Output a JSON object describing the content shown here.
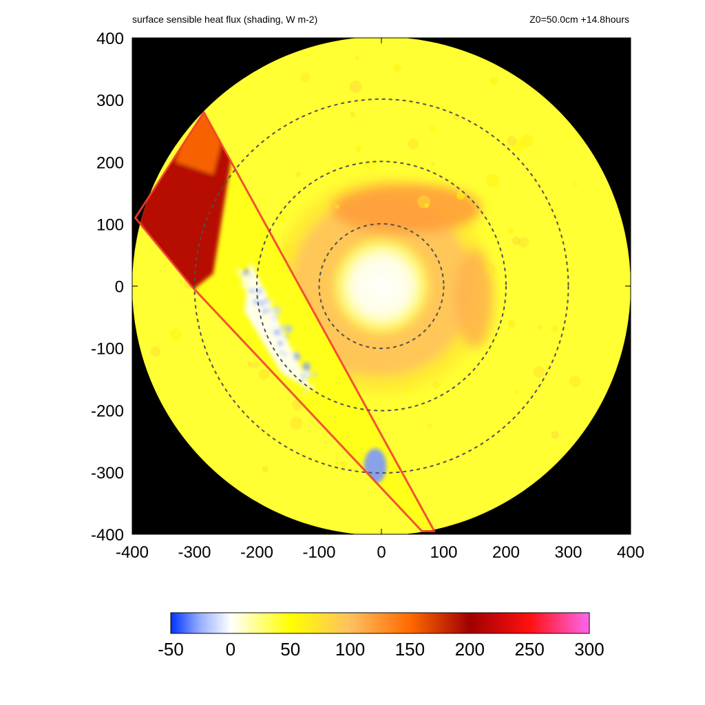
{
  "header": {
    "title": "surface sensible heat flux (shading, W m-2)",
    "run_label": "Z0=50.0cm  +14.8hours"
  },
  "chart_data": {
    "type": "heatmap",
    "title": "surface sensible heat flux (shading, W m-2)",
    "annotation": "Z0=50.0cm  +14.8hours",
    "xlabel": "",
    "ylabel": "",
    "xlim": [
      -400,
      400
    ],
    "ylim": [
      -400,
      400
    ],
    "x_ticks": [
      -400,
      -300,
      -200,
      -100,
      0,
      100,
      200,
      300,
      400
    ],
    "y_ticks": [
      -400,
      -300,
      -200,
      -100,
      0,
      100,
      200,
      300,
      400
    ],
    "domain_radius": 400,
    "background_outside_domain": "#000000",
    "dashed_circles": [
      {
        "radius": 100,
        "color": "#505050"
      },
      {
        "radius": 200,
        "color": "#505050"
      },
      {
        "radius": 300,
        "color": "#505050"
      }
    ],
    "land_strip_outline": {
      "color": "#f04030",
      "polygon": [
        [
          -285,
          280
        ],
        [
          85,
          -395
        ],
        [
          65,
          -395
        ],
        [
          -305,
          0
        ],
        [
          -395,
          110
        ]
      ]
    },
    "colorbar": {
      "min": -50,
      "max": 300,
      "ticks": [
        -50,
        0,
        50,
        100,
        150,
        200,
        250,
        300
      ],
      "stops": [
        {
          "value": -50,
          "color": "#0033ff"
        },
        {
          "value": -25,
          "color": "#9ab0ff"
        },
        {
          "value": 0,
          "color": "#ffffff"
        },
        {
          "value": 50,
          "color": "#ffff00"
        },
        {
          "value": 100,
          "color": "#ffc060"
        },
        {
          "value": 150,
          "color": "#ff6a00"
        },
        {
          "value": 200,
          "color": "#a00000"
        },
        {
          "value": 250,
          "color": "#ff1010"
        },
        {
          "value": 300,
          "color": "#ff66ee"
        }
      ]
    },
    "field_regions": [
      {
        "kind": "ambient",
        "value": 40
      },
      {
        "kind": "eye",
        "center": [
          0,
          0
        ],
        "radius": 75,
        "value": 10
      },
      {
        "kind": "eyewall_ring",
        "center": [
          0,
          0
        ],
        "radius": 110,
        "width": 70,
        "value": 100,
        "arc_deg": [
          -240,
          70
        ]
      },
      {
        "kind": "north_band",
        "center": [
          40,
          125
        ],
        "rx": 120,
        "ry": 40,
        "value": 120
      },
      {
        "kind": "land_strip_upper",
        "value": 210
      },
      {
        "kind": "land_strip_middle",
        "value": 0
      }
    ]
  }
}
